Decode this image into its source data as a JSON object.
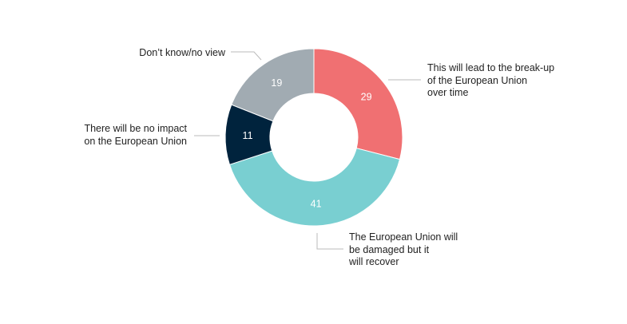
{
  "chart_data": {
    "type": "pie",
    "donut": true,
    "segments": [
      {
        "label": "This will lead to the break-up\nof the European Union\nover time",
        "value": 29,
        "color": "#F07072"
      },
      {
        "label": "The European Union will\nbe damaged but it\nwill recover",
        "value": 41,
        "color": "#79CFD1"
      },
      {
        "label": "There will be no impact\non the European Union",
        "value": 11,
        "color": "#00233D"
      },
      {
        "label": "Don’t know/no view",
        "value": 19,
        "color": "#A1ABB2"
      }
    ],
    "data_label_color": "#FFFFFF",
    "leader_line_color": "#BBBBBB"
  }
}
